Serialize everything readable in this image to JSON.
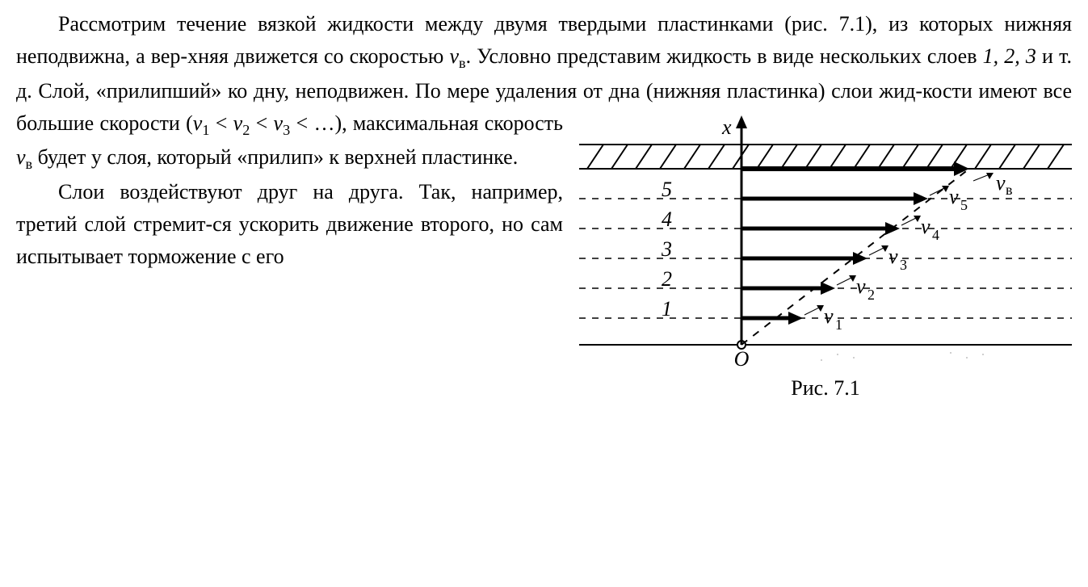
{
  "text": {
    "p1_first": "Рассмотрим течение вязкой жидкости между двумя твердыми пластинками (рис. 7.1), из которых нижняя неподвижна, а вер-хняя движется со скоростью ",
    "v_v": "в",
    "p1_after_vv": ". Условно представим жидкость в виде нескольких слоев ",
    "layers_italic": "1, 2, 3",
    "p1_after_layers": " и т. д. Слой, «прилипший» ко дну, неподвижен. По мере удаления от ",
    "p1_wrap": "дна (нижняя пластинка) слои жид-кости имеют все большие скорости (",
    "ineq_1": "1",
    "ineq_2": "2",
    "ineq_3": "3",
    "ineq_after": " …), максимальная скорость ",
    "p1_tail": " будет у слоя, который «прилип» к верхней пластинке.",
    "p2": "Слои воздействуют друг на друга. Так, например, третий слой стремит-ся ускорить движение второго, но сам испытывает торможение с его"
  },
  "figure": {
    "caption": "Рис. 7.1",
    "axis_label": "x",
    "origin_label": "O",
    "layers": [
      {
        "num": "5",
        "v_sub": "5",
        "len": 225
      },
      {
        "num": "4",
        "v_sub": "4",
        "len": 190
      },
      {
        "num": "3",
        "v_sub": "3",
        "len": 150
      },
      {
        "num": "2",
        "v_sub": "2",
        "len": 110
      },
      {
        "num": "1",
        "v_sub": "1",
        "len": 70
      }
    ],
    "top_v_sub": "в",
    "top_len": 270,
    "colors": {
      "black": "#000000",
      "dash": "#000000"
    },
    "arrow_stroke_width": 5,
    "dash_pattern": "8,8"
  }
}
